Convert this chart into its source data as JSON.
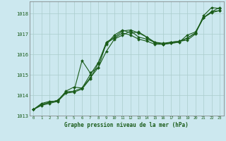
{
  "xlabel": "Graphe pression niveau de la mer (hPa)",
  "bg_color": "#cce8ef",
  "grid_color": "#aacccc",
  "line_color": "#1a5c1a",
  "ylim": [
    1013.0,
    1018.6
  ],
  "xlim": [
    -0.5,
    23.5
  ],
  "yticks": [
    1013,
    1014,
    1015,
    1016,
    1017,
    1018
  ],
  "xticks": [
    0,
    1,
    2,
    3,
    4,
    5,
    6,
    7,
    8,
    9,
    10,
    11,
    12,
    13,
    14,
    15,
    16,
    17,
    18,
    19,
    20,
    21,
    22,
    23
  ],
  "series": [
    [
      1013.3,
      1013.55,
      1013.65,
      1013.75,
      1014.15,
      1014.2,
      1014.35,
      1014.85,
      1015.35,
      1016.15,
      1016.75,
      1016.95,
      1017.15,
      1016.85,
      1016.75,
      1016.6,
      1016.5,
      1016.6,
      1016.65,
      1016.8,
      1017.05,
      1017.8,
      1018.1,
      1018.15
    ],
    [
      1013.3,
      1013.55,
      1013.65,
      1013.75,
      1014.15,
      1014.2,
      1015.7,
      1015.1,
      1015.35,
      1016.55,
      1016.8,
      1017.05,
      1016.95,
      1016.75,
      1016.65,
      1016.5,
      1016.5,
      1016.55,
      1016.6,
      1016.8,
      1017.05,
      1017.8,
      1018.05,
      1018.15
    ],
    [
      1013.3,
      1013.6,
      1013.7,
      1013.7,
      1014.2,
      1014.4,
      1014.35,
      1015.0,
      1015.6,
      1016.5,
      1016.95,
      1017.2,
      1017.05,
      1017.1,
      1016.85,
      1016.6,
      1016.55,
      1016.6,
      1016.65,
      1016.7,
      1017.0,
      1017.9,
      1018.3,
      1018.25
    ],
    [
      1013.3,
      1013.5,
      1013.6,
      1013.7,
      1014.1,
      1014.15,
      1014.3,
      1014.8,
      1015.55,
      1016.6,
      1016.85,
      1017.15,
      1017.2,
      1017.05,
      1016.85,
      1016.55,
      1016.5,
      1016.55,
      1016.6,
      1016.95,
      1017.1,
      1017.8,
      1018.1,
      1018.3
    ]
  ]
}
